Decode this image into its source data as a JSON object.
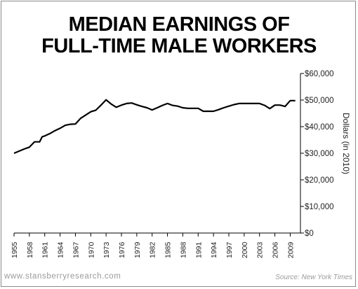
{
  "title_line1": "MEDIAN EARNINGS OF",
  "title_line2": "FULL-TIME MALE WORKERS",
  "footer_left": "www.stansberryresearch.com",
  "footer_right": "Source: New York Times",
  "chart_data": {
    "type": "line",
    "title": "MEDIAN EARNINGS OF FULL-TIME MALE WORKERS",
    "ylabel": "Dollars (in 2010)",
    "xlabel": "",
    "ylim": [
      0,
      60000
    ],
    "xlim": [
      1955,
      2011
    ],
    "y_ticks": [
      0,
      10000,
      20000,
      30000,
      40000,
      50000,
      60000
    ],
    "y_tick_labels": [
      "$0",
      "$10,000",
      "$20,000",
      "$30,000",
      "$40,000",
      "$50,000",
      "$60,000"
    ],
    "x_ticks": [
      1955,
      1958,
      1961,
      1964,
      1967,
      1970,
      1973,
      1976,
      1979,
      1982,
      1985,
      1988,
      1991,
      1994,
      1997,
      2000,
      2003,
      2006,
      2009
    ],
    "x_tick_labels": [
      "1955",
      "1958",
      "1961",
      "1964",
      "1967",
      "1970",
      "1973",
      "1976",
      "1979",
      "1982",
      "1985",
      "1988",
      "1991",
      "1994",
      "1997",
      "2000",
      "2003",
      "2006",
      "2009"
    ],
    "grid": false,
    "line_color": "#000000",
    "series": [
      {
        "name": "",
        "x": [
          1955,
          1957,
          1958,
          1959,
          1960,
          1960.5,
          1961,
          1962,
          1963,
          1964,
          1965,
          1966,
          1967,
          1968,
          1970,
          1971,
          1972,
          1973,
          1974,
          1975,
          1976,
          1977,
          1978,
          1979,
          1980,
          1981,
          1982,
          1983,
          1984,
          1985,
          1986,
          1987,
          1988,
          1989,
          1990,
          1991,
          1992,
          1993,
          1994,
          1995,
          1996,
          1997,
          1998,
          1999,
          2000,
          2001,
          2002,
          2003,
          2004,
          2005,
          2006,
          2007,
          2008,
          2009,
          2010
        ],
        "y": [
          30000,
          31600,
          32300,
          34300,
          34300,
          36200,
          36500,
          37400,
          38500,
          39400,
          40500,
          40900,
          41000,
          43100,
          45600,
          46200,
          48100,
          50100,
          48500,
          47300,
          48100,
          48700,
          48900,
          48200,
          47600,
          47100,
          46300,
          47100,
          48000,
          48700,
          48000,
          47700,
          47100,
          46900,
          46900,
          46900,
          45800,
          45800,
          45800,
          46400,
          47100,
          47700,
          48300,
          48700,
          48700,
          48700,
          48700,
          48700,
          48000,
          46800,
          48100,
          48100,
          47600,
          49800,
          49800
        ]
      }
    ]
  }
}
